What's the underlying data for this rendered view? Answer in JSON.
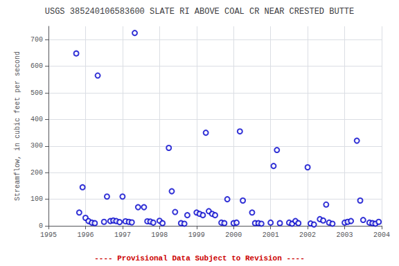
{
  "chart_data": {
    "type": "scatter",
    "title": "USGS 385240106583600 SLATE RI ABOVE COAL CR NEAR CRESTED BUTTE",
    "ylabel": "Streamflow, in cubic feet per second",
    "annotations": [
      {
        "text": "---- Provisional Data Subject to Revision ----",
        "color": "#cc0000"
      }
    ],
    "x": [
      1995.75,
      1995.83,
      1995.92,
      1996.0,
      1996.08,
      1996.17,
      1996.25,
      1996.33,
      1996.5,
      1996.58,
      1996.67,
      1996.75,
      1996.83,
      1996.92,
      1997.0,
      1997.08,
      1997.17,
      1997.25,
      1997.33,
      1997.42,
      1997.58,
      1997.67,
      1997.75,
      1997.83,
      1998.0,
      1998.08,
      1998.25,
      1998.33,
      1998.42,
      1998.58,
      1998.67,
      1998.75,
      1999.0,
      1999.08,
      1999.17,
      1999.25,
      1999.33,
      1999.42,
      1999.5,
      1999.67,
      1999.75,
      1999.83,
      2000.0,
      2000.08,
      2000.17,
      2000.25,
      2000.5,
      2000.58,
      2000.67,
      2000.75,
      2001.0,
      2001.08,
      2001.17,
      2001.25,
      2001.5,
      2001.58,
      2001.67,
      2001.75,
      2002.0,
      2002.08,
      2002.17,
      2002.33,
      2002.42,
      2002.5,
      2002.58,
      2002.67,
      2003.0,
      2003.08,
      2003.17,
      2003.33,
      2003.42,
      2003.5,
      2003.67,
      2003.75,
      2003.83,
      2003.92
    ],
    "values": [
      648,
      50,
      145,
      30,
      18,
      12,
      10,
      565,
      15,
      110,
      18,
      20,
      18,
      14,
      110,
      17,
      15,
      13,
      725,
      70,
      70,
      17,
      16,
      12,
      19,
      10,
      293,
      130,
      52,
      10,
      8,
      40,
      50,
      45,
      40,
      350,
      55,
      45,
      40,
      12,
      10,
      100,
      10,
      12,
      355,
      95,
      50,
      10,
      10,
      8,
      12,
      225,
      285,
      10,
      12,
      8,
      18,
      10,
      220,
      9,
      5,
      25,
      20,
      80,
      12,
      8,
      12,
      15,
      18,
      320,
      95,
      22,
      12,
      10,
      8,
      15
    ],
    "color": "#0000cc",
    "marker": "circle",
    "xlim": [
      1995,
      2004
    ],
    "xticks": [
      1995,
      1996,
      1997,
      1998,
      1999,
      2000,
      2001,
      2002,
      2003,
      2004
    ],
    "ylim": [
      0,
      750
    ],
    "yticks": [
      0,
      100,
      200,
      300,
      400,
      500,
      600,
      700
    ],
    "grid": true
  }
}
